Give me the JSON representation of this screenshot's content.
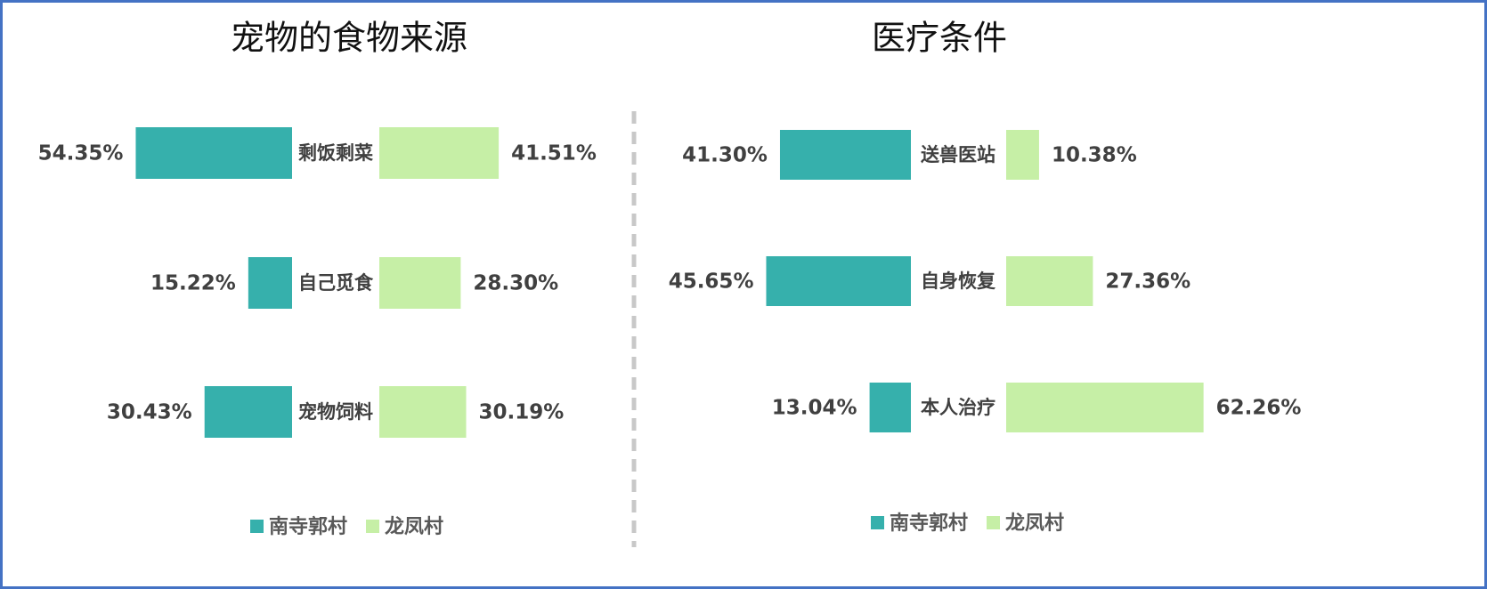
{
  "colors": {
    "series_a": "#36B0AC",
    "series_b": "#C6EFA6",
    "border": "#4472C4",
    "divider": "#C8C8C8",
    "text": "#404040"
  },
  "legend": [
    "南寺郭村",
    "龙凤村"
  ],
  "chart_data": [
    {
      "type": "bar",
      "orientation": "butterfly",
      "title": "宠物的食物来源",
      "categories": [
        "剩饭剩菜",
        "自己觅食",
        "宠物饲料"
      ],
      "series": [
        {
          "name": "南寺郭村",
          "values": [
            54.35,
            15.22,
            30.43
          ],
          "labels": [
            "54.35%",
            "15.22%",
            "30.43%"
          ]
        },
        {
          "name": "龙凤村",
          "values": [
            41.51,
            28.3,
            30.19
          ],
          "labels": [
            "41.51%",
            "28.30%",
            "30.19%"
          ]
        }
      ],
      "legend_position": "bottom"
    },
    {
      "type": "bar",
      "orientation": "butterfly",
      "title": "医疗条件",
      "categories": [
        "送兽医站",
        "自身恢复",
        "本人治疗"
      ],
      "series": [
        {
          "name": "南寺郭村",
          "values": [
            41.3,
            45.65,
            13.04
          ],
          "labels": [
            "41.30%",
            "45.65%",
            "13.04%"
          ]
        },
        {
          "name": "龙凤村",
          "values": [
            10.38,
            27.36,
            62.26
          ],
          "labels": [
            "10.38%",
            "27.36%",
            "62.26%"
          ]
        }
      ],
      "legend_position": "bottom"
    }
  ]
}
